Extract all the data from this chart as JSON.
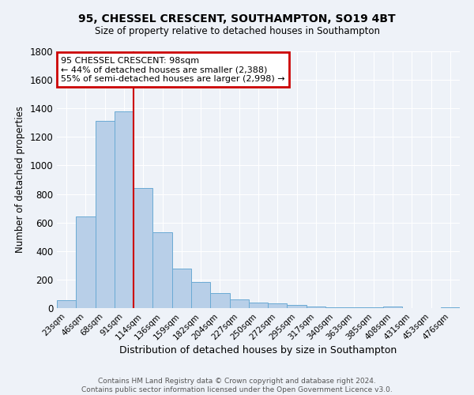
{
  "title_line1": "95, CHESSEL CRESCENT, SOUTHAMPTON, SO19 4BT",
  "title_line2": "Size of property relative to detached houses in Southampton",
  "xlabel": "Distribution of detached houses by size in Southampton",
  "ylabel": "Number of detached properties",
  "categories": [
    "23sqm",
    "46sqm",
    "68sqm",
    "91sqm",
    "114sqm",
    "136sqm",
    "159sqm",
    "182sqm",
    "204sqm",
    "227sqm",
    "250sqm",
    "272sqm",
    "295sqm",
    "317sqm",
    "340sqm",
    "363sqm",
    "385sqm",
    "408sqm",
    "431sqm",
    "453sqm",
    "476sqm"
  ],
  "values": [
    55,
    640,
    1310,
    1380,
    840,
    530,
    275,
    185,
    105,
    60,
    37,
    35,
    22,
    12,
    5,
    8,
    3,
    10,
    2,
    0,
    8
  ],
  "bar_color": "#b8cfe8",
  "bar_edge_color": "#6aaad4",
  "annotation_text": "95 CHESSEL CRESCENT: 98sqm\n← 44% of detached houses are smaller (2,388)\n55% of semi-detached houses are larger (2,998) →",
  "annotation_box_color": "#ffffff",
  "annotation_box_edge_color": "#cc0000",
  "vline_color": "#cc0000",
  "vline_x": 3.5,
  "ylim": [
    0,
    1800
  ],
  "background_color": "#eef2f8",
  "grid_color": "#ffffff",
  "yticks": [
    0,
    200,
    400,
    600,
    800,
    1000,
    1200,
    1400,
    1600,
    1800
  ],
  "footer_line1": "Contains HM Land Registry data © Crown copyright and database right 2024.",
  "footer_line2": "Contains public sector information licensed under the Open Government Licence v3.0."
}
